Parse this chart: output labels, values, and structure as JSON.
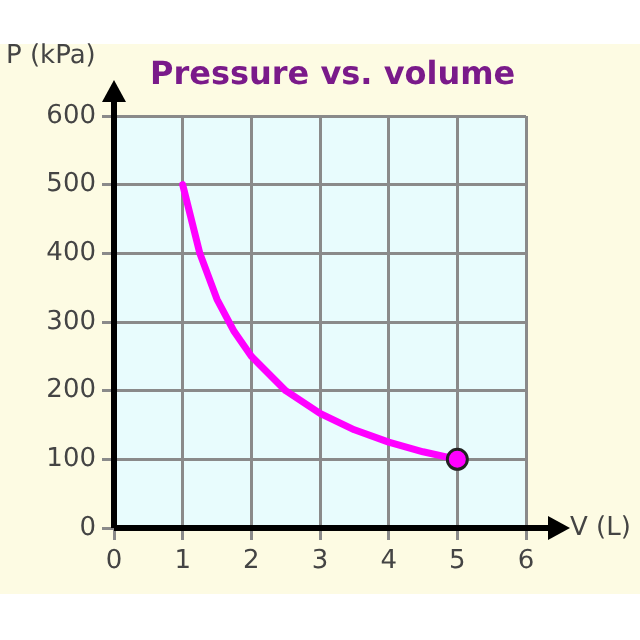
{
  "chart_data": {
    "type": "line",
    "title": "Pressure vs. volume",
    "xlabel": "V (L)",
    "ylabel": "P (kPa)",
    "xlim": [
      0,
      6
    ],
    "xticks": [
      0,
      1,
      2,
      3,
      4,
      5,
      6
    ],
    "ylim": [
      0,
      600
    ],
    "yticks": [
      0,
      100,
      200,
      300,
      400,
      500,
      600
    ],
    "grid": true,
    "legend": false,
    "series": [
      {
        "type": "line",
        "color": "#ff00ff",
        "marker": "none",
        "x": [
          1,
          1.25,
          1.5,
          1.75,
          2,
          2.5,
          3,
          3.5,
          4,
          4.5,
          5
        ],
        "values": [
          500,
          400,
          333,
          286,
          250,
          200,
          167,
          143,
          125,
          111,
          100
        ]
      },
      {
        "type": "scatter",
        "color": "#ff00ff",
        "marker": "circle",
        "x": [
          5
        ],
        "values": [
          100
        ]
      }
    ]
  }
}
